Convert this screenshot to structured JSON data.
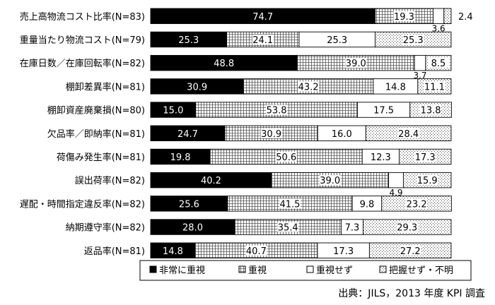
{
  "chart_data": {
    "type": "bar",
    "orientation": "horizontal",
    "stacked": true,
    "percent": true,
    "xlim": [
      0,
      100
    ],
    "categories": [
      "売上高物流コスト比率(N=83)",
      "重量当たり物流コスト(N=79)",
      "在庫日数／在庫回転率(N=82)",
      "棚卸差異率(N=81)",
      "棚卸資産廃棄損(N=80)",
      "欠品率／即納率(N=81)",
      "荷傷み発生率(N=81)",
      "誤出荷率(N=82)",
      "遅配・時間指定違反率(N=82)",
      "納期遵守率(N=82)",
      "返品率(N=81)"
    ],
    "series": [
      {
        "name": "非常に重視",
        "pattern": "solid",
        "color": "#000000",
        "values": [
          74.7,
          25.3,
          48.8,
          30.9,
          15.0,
          24.7,
          19.8,
          40.2,
          25.6,
          28.0,
          14.8
        ]
      },
      {
        "name": "重視",
        "pattern": "grid",
        "color": "#ffffff",
        "values": [
          19.3,
          24.1,
          39.0,
          43.2,
          53.8,
          30.9,
          50.6,
          39.0,
          41.5,
          35.4,
          40.7
        ]
      },
      {
        "name": "重視せず",
        "pattern": "none",
        "color": "#ffffff",
        "values": [
          3.6,
          25.3,
          3.7,
          14.8,
          17.5,
          16.0,
          12.3,
          4.9,
          9.8,
          7.3,
          17.3
        ]
      },
      {
        "name": "把握せず・不明",
        "pattern": "dots",
        "color": "#ffffff",
        "values": [
          2.4,
          25.3,
          8.5,
          11.1,
          13.8,
          28.4,
          17.3,
          15.9,
          23.2,
          29.3,
          27.2
        ]
      }
    ],
    "labels": [
      [
        "74.7",
        "19.3",
        "3.6",
        "2.4"
      ],
      [
        "25.3",
        "24.1",
        "25.3",
        "25.3"
      ],
      [
        "48.8",
        "39.0",
        "3.7",
        "8.5"
      ],
      [
        "30.9",
        "43.2",
        "14.8",
        "11.1"
      ],
      [
        "15.0",
        "53.8",
        "17.5",
        "13.8"
      ],
      [
        "24.7",
        "30.9",
        "16.0",
        "28.4"
      ],
      [
        "19.8",
        "50.6",
        "12.3",
        "17.3"
      ],
      [
        "40.2",
        "39.0",
        "4.9",
        "15.9"
      ],
      [
        "25.6",
        "41.5",
        "9.8",
        "23.2"
      ],
      [
        "28.0",
        "35.4",
        "7.3",
        "29.3"
      ],
      [
        "14.8",
        "40.7",
        "17.3",
        "27.2"
      ]
    ],
    "legend_position": "bottom"
  },
  "source": "出典：JILS，2013 年度 KPI 調査"
}
